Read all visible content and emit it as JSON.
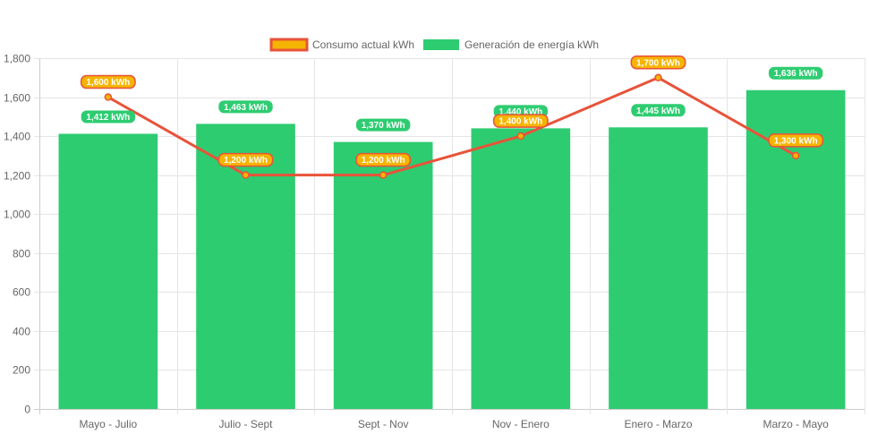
{
  "chart_data": {
    "type": "bar",
    "categories": [
      "Mayo - Julio",
      "Julio - Sept",
      "Sept - Nov",
      "Nov - Enero",
      "Enero - Marzo",
      "Marzo - Mayo"
    ],
    "series": [
      {
        "name": "Consumo actual kWh",
        "type": "line",
        "values": [
          1600,
          1200,
          1200,
          1400,
          1700,
          1300
        ],
        "labels": [
          "1,600 kWh",
          "1,200 kWh",
          "1,200 kWh",
          "1,400 kWh",
          "1,700 kWh",
          "1,300 kWh"
        ],
        "color": "#e8533a",
        "label_color": "#f5b400",
        "label_border": "#e8533a"
      },
      {
        "name": "Generación de energía kWh",
        "type": "bar",
        "values": [
          1412,
          1463,
          1370,
          1440,
          1445,
          1636
        ],
        "labels": [
          "1,412 kWh",
          "1,463 kWh",
          "1,370 kWh",
          "1,440 kWh",
          "1,445 kWh",
          "1,636 kWh"
        ],
        "color": "#2ecc71"
      }
    ],
    "y_ticks": [
      "0",
      "200",
      "400",
      "600",
      "800",
      "1,000",
      "1,200",
      "1,400",
      "1,600",
      "1,800"
    ],
    "ylim": [
      0,
      1800
    ],
    "grid": true,
    "legend_position": "top-center",
    "title": "",
    "xlabel": "",
    "ylabel": ""
  }
}
